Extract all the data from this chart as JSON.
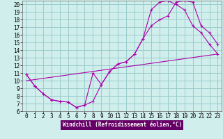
{
  "xlabel": "Windchill (Refroidissement éolien,°C)",
  "bg_color": "#d0eeec",
  "line_color": "#aa00aa",
  "grid_color": "#99cccc",
  "xlim": [
    -0.5,
    23.5
  ],
  "ylim": [
    6,
    20.5
  ],
  "xticks": [
    0,
    1,
    2,
    3,
    4,
    5,
    6,
    7,
    8,
    9,
    10,
    11,
    12,
    13,
    14,
    15,
    16,
    17,
    18,
    19,
    20,
    21,
    22,
    23
  ],
  "yticks": [
    6,
    7,
    8,
    9,
    10,
    11,
    12,
    13,
    14,
    15,
    16,
    17,
    18,
    19,
    20
  ],
  "curve1_x": [
    0,
    1,
    2,
    3,
    4,
    5,
    6,
    7,
    8,
    9,
    10,
    11,
    12,
    13,
    14,
    15,
    16,
    17,
    18,
    19,
    20,
    21,
    22,
    23
  ],
  "curve1_y": [
    10.8,
    9.3,
    8.3,
    7.5,
    7.3,
    7.2,
    6.5,
    6.8,
    7.3,
    9.5,
    11.2,
    12.2,
    12.5,
    13.5,
    15.5,
    17.2,
    18.0,
    18.5,
    20.3,
    20.5,
    20.3,
    17.2,
    16.3,
    14.8
  ],
  "curve2_x": [
    0,
    1,
    2,
    3,
    4,
    5,
    6,
    7,
    8,
    9,
    10,
    11,
    12,
    13,
    14,
    15,
    16,
    17,
    18,
    19,
    20,
    21,
    22,
    23
  ],
  "curve2_y": [
    10.8,
    9.3,
    8.3,
    7.5,
    7.3,
    7.2,
    6.5,
    6.8,
    11.0,
    9.5,
    11.2,
    12.2,
    12.5,
    13.5,
    15.5,
    19.3,
    20.3,
    20.5,
    20.0,
    19.3,
    17.2,
    16.3,
    14.8,
    13.5
  ],
  "line3_x": [
    0,
    23
  ],
  "line3_y": [
    10.0,
    13.5
  ],
  "xlabel_bg": "#660066",
  "xlabel_fg": "#ffffff",
  "xlabel_fontsize": 5.5,
  "tick_fontsize": 5.5
}
